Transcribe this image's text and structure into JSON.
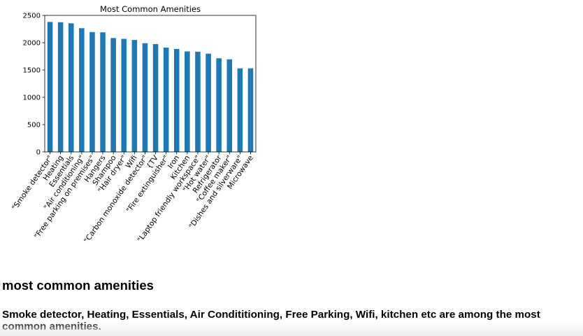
{
  "chart_data": {
    "type": "bar",
    "title": "Most Common Amenities",
    "xlabel": "",
    "ylabel": "",
    "ylim": [
      0,
      2500
    ],
    "yticks": [
      0,
      500,
      1000,
      1500,
      2000,
      2500
    ],
    "grid": false,
    "categories": [
      "\"Smoke detector\"",
      "Heating",
      "Essentials",
      "\"Air conditioning\"",
      "\"Free parking on premises\"",
      "Hangers",
      "Shampoo",
      "\"Hair dryer\"",
      "Wifi",
      "\"Carbon monoxide detector\"",
      "{TV",
      "\"Fire extinguisher\"",
      "Iron",
      "Kitchen",
      "\"Laptop friendly workspace\"",
      "\"Hot water\"",
      "Refrigerator",
      "\"Coffee maker\"",
      "\"Dishes and silverware\"",
      "Microwave"
    ],
    "values": [
      2380,
      2375,
      2355,
      2265,
      2195,
      2190,
      2085,
      2070,
      2050,
      1990,
      1975,
      1910,
      1885,
      1840,
      1835,
      1800,
      1715,
      1695,
      1530,
      1530
    ],
    "color": "#1f77b4"
  },
  "markdown": {
    "heading": "most common amenities",
    "paragraph": "Smoke detector, Heating, Essentials, Air Condititioning, Free Parking, Wifi, kitchen etc are among the most common amenities."
  }
}
